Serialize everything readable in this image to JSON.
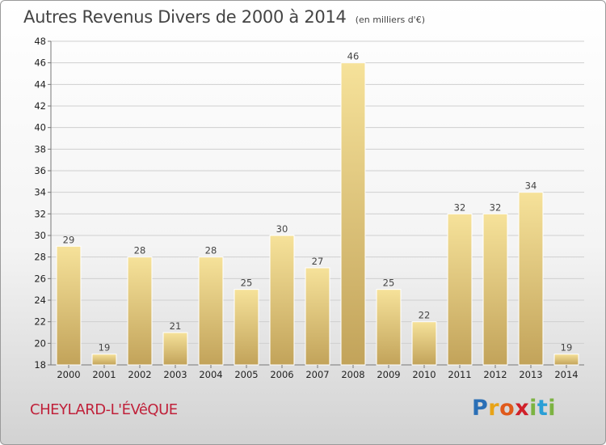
{
  "header": {
    "title": "Autres Revenus Divers de 2000 à 2014",
    "subtitle": "(en milliers d'€)"
  },
  "footer": {
    "town": "CHEYLARD-L'ÉVêQUE",
    "logo": {
      "letters": [
        "P",
        "r",
        "o",
        "x",
        "i",
        "t",
        "i"
      ],
      "colors": [
        "#2a6fb6",
        "#e8a317",
        "#e05a1b",
        "#d0202a",
        "#7cb342",
        "#2a9fd6",
        "#7cb342"
      ]
    }
  },
  "colors": {
    "bar_light": "#f6e29a",
    "bar_dark": "#c2a35a",
    "bar_edge": "#ffffff",
    "grid": "#cfcfcf",
    "title": "#444444",
    "town": "#c0213a"
  },
  "chart_data": {
    "type": "bar",
    "title": "Autres Revenus Divers de 2000 à 2014",
    "subtitle": "(en milliers d'€)",
    "categories": [
      "2000",
      "2001",
      "2002",
      "2003",
      "2004",
      "2005",
      "2006",
      "2007",
      "2008",
      "2009",
      "2010",
      "2011",
      "2012",
      "2013",
      "2014"
    ],
    "values": [
      29,
      19,
      28,
      21,
      28,
      25,
      30,
      27,
      46,
      25,
      22,
      32,
      32,
      34,
      19
    ],
    "ylim": [
      18,
      48
    ],
    "yticks": [
      18,
      20,
      22,
      24,
      26,
      28,
      30,
      32,
      34,
      36,
      38,
      40,
      42,
      44,
      46,
      48
    ],
    "grid": true,
    "xlabel": "",
    "ylabel": ""
  }
}
